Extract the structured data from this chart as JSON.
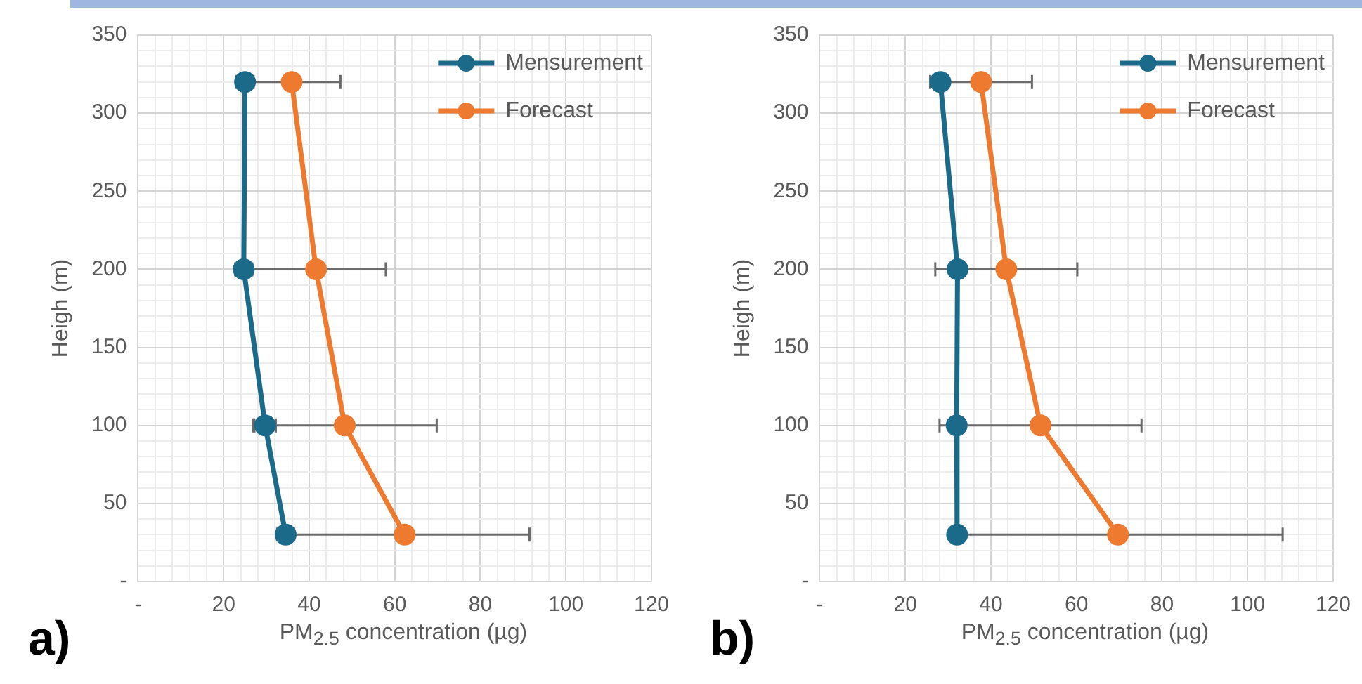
{
  "chart_data": [
    {
      "type": "line",
      "xlabel": "PM$_{2.5}$ concentration (µg)",
      "ylabel": "Heigh (m)",
      "annotations": [
        "a)"
      ],
      "legend": "top right",
      "grid": true,
      "marker": "circle",
      "line_style": "solid",
      "xlim": [
        0,
        120
      ],
      "ylim": [
        0,
        350
      ],
      "xticks": [
        {
          "value": 0,
          "label": "-"
        },
        {
          "value": 4,
          "label": null
        },
        {
          "value": 8,
          "label": null
        },
        {
          "value": 12,
          "label": null
        },
        {
          "value": 16,
          "label": null
        },
        20,
        {
          "value": 24,
          "label": null
        },
        {
          "value": 28,
          "label": null
        },
        {
          "value": 32,
          "label": null
        },
        {
          "value": 36,
          "label": null
        },
        40,
        {
          "value": 44,
          "label": null
        },
        {
          "value": 48,
          "label": null
        },
        {
          "value": 52,
          "label": null
        },
        {
          "value": 56,
          "label": null
        },
        60,
        {
          "value": 64,
          "label": null
        },
        {
          "value": 68,
          "label": null
        },
        {
          "value": 72,
          "label": null
        },
        {
          "value": 76,
          "label": null
        },
        80,
        {
          "value": 84,
          "label": null
        },
        {
          "value": 88,
          "label": null
        },
        {
          "value": 92,
          "label": null
        },
        {
          "value": 96,
          "label": null
        },
        100,
        {
          "value": 104,
          "label": null
        },
        {
          "value": 108,
          "label": null
        },
        {
          "value": 112,
          "label": null
        },
        {
          "value": 116,
          "label": null
        },
        120
      ],
      "yticks": [
        {
          "value": 0,
          "label": "-"
        },
        {
          "value": 10,
          "label": null
        },
        {
          "value": 20,
          "label": null
        },
        {
          "value": 30,
          "label": null
        },
        {
          "value": 40,
          "label": null
        },
        50,
        {
          "value": 60,
          "label": null
        },
        {
          "value": 70,
          "label": null
        },
        {
          "value": 80,
          "label": null
        },
        {
          "value": 90,
          "label": null
        },
        100,
        {
          "value": 110,
          "label": null
        },
        {
          "value": 120,
          "label": null
        },
        {
          "value": 130,
          "label": null
        },
        {
          "value": 140,
          "label": null
        },
        150,
        {
          "value": 160,
          "label": null
        },
        {
          "value": 170,
          "label": null
        },
        {
          "value": 180,
          "label": null
        },
        {
          "value": 190,
          "label": null
        },
        200,
        {
          "value": 210,
          "label": null
        },
        {
          "value": 220,
          "label": null
        },
        {
          "value": 230,
          "label": null
        },
        {
          "value": 240,
          "label": null
        },
        250,
        {
          "value": 260,
          "label": null
        },
        {
          "value": 270,
          "label": null
        },
        {
          "value": 280,
          "label": null
        },
        {
          "value": 290,
          "label": null
        },
        300,
        {
          "value": 310,
          "label": null
        },
        {
          "value": 320,
          "label": null
        },
        {
          "value": 330,
          "label": null
        },
        {
          "value": 340,
          "label": null
        },
        350
      ],
      "series": [
        {
          "name": "Mensurement",
          "color": "#1b6a8a",
          "x": [
            25,
            24.7,
            29.7,
            34.5
          ],
          "values": [
            320,
            200,
            100,
            30
          ],
          "xerrors": [
            2,
            2,
            2.5,
            2
          ]
        },
        {
          "name": "Forecast",
          "color": "#ee7a30",
          "x": [
            35.9,
            41.6,
            48.3,
            62.3
          ],
          "values": [
            320,
            200,
            100,
            30
          ],
          "xerrors": [
            11.4,
            16.3,
            21.5,
            29.2
          ]
        }
      ]
    },
    {
      "type": "line",
      "xlabel": "PM$_{2.5}$ concentration (µg)",
      "ylabel": "Heigh (m)",
      "annotations": [
        "b)"
      ],
      "legend": "top right",
      "grid": true,
      "marker": "circle",
      "line_style": "solid",
      "xlim": [
        0,
        120
      ],
      "ylim": [
        0,
        350
      ],
      "xticks": [
        {
          "value": 0,
          "label": "-"
        },
        {
          "value": 4,
          "label": null
        },
        {
          "value": 8,
          "label": null
        },
        {
          "value": 12,
          "label": null
        },
        {
          "value": 16,
          "label": null
        },
        20,
        {
          "value": 24,
          "label": null
        },
        {
          "value": 28,
          "label": null
        },
        {
          "value": 32,
          "label": null
        },
        {
          "value": 36,
          "label": null
        },
        40,
        {
          "value": 44,
          "label": null
        },
        {
          "value": 48,
          "label": null
        },
        {
          "value": 52,
          "label": null
        },
        {
          "value": 56,
          "label": null
        },
        60,
        {
          "value": 64,
          "label": null
        },
        {
          "value": 68,
          "label": null
        },
        {
          "value": 72,
          "label": null
        },
        {
          "value": 76,
          "label": null
        },
        80,
        {
          "value": 84,
          "label": null
        },
        {
          "value": 88,
          "label": null
        },
        {
          "value": 92,
          "label": null
        },
        {
          "value": 96,
          "label": null
        },
        100,
        {
          "value": 104,
          "label": null
        },
        {
          "value": 108,
          "label": null
        },
        {
          "value": 112,
          "label": null
        },
        {
          "value": 116,
          "label": null
        },
        120
      ],
      "yticks": [
        {
          "value": 0,
          "label": "-"
        },
        {
          "value": 10,
          "label": null
        },
        {
          "value": 20,
          "label": null
        },
        {
          "value": 30,
          "label": null
        },
        {
          "value": 40,
          "label": null
        },
        50,
        {
          "value": 60,
          "label": null
        },
        {
          "value": 70,
          "label": null
        },
        {
          "value": 80,
          "label": null
        },
        {
          "value": 90,
          "label": null
        },
        100,
        {
          "value": 110,
          "label": null
        },
        {
          "value": 120,
          "label": null
        },
        {
          "value": 130,
          "label": null
        },
        {
          "value": 140,
          "label": null
        },
        150,
        {
          "value": 160,
          "label": null
        },
        {
          "value": 170,
          "label": null
        },
        {
          "value": 180,
          "label": null
        },
        {
          "value": 190,
          "label": null
        },
        200,
        {
          "value": 210,
          "label": null
        },
        {
          "value": 220,
          "label": null
        },
        {
          "value": 230,
          "label": null
        },
        {
          "value": 240,
          "label": null
        },
        250,
        {
          "value": 260,
          "label": null
        },
        {
          "value": 270,
          "label": null
        },
        {
          "value": 280,
          "label": null
        },
        {
          "value": 290,
          "label": null
        },
        300,
        {
          "value": 310,
          "label": null
        },
        {
          "value": 320,
          "label": null
        },
        {
          "value": 330,
          "label": null
        },
        {
          "value": 340,
          "label": null
        },
        350
      ],
      "series": [
        {
          "name": "Mensurement",
          "color": "#1b6a8a",
          "x": [
            28.2,
            32.2,
            32,
            32.1
          ],
          "values": [
            320,
            200,
            100,
            30
          ]
        },
        {
          "name": "Forecast",
          "color": "#ee7a30",
          "x": [
            37.7,
            43.6,
            51.6,
            69.7
          ],
          "values": [
            320,
            200,
            100,
            30
          ],
          "xerrors": [
            11.9,
            16.6,
            23.6,
            38.5
          ]
        }
      ]
    }
  ]
}
